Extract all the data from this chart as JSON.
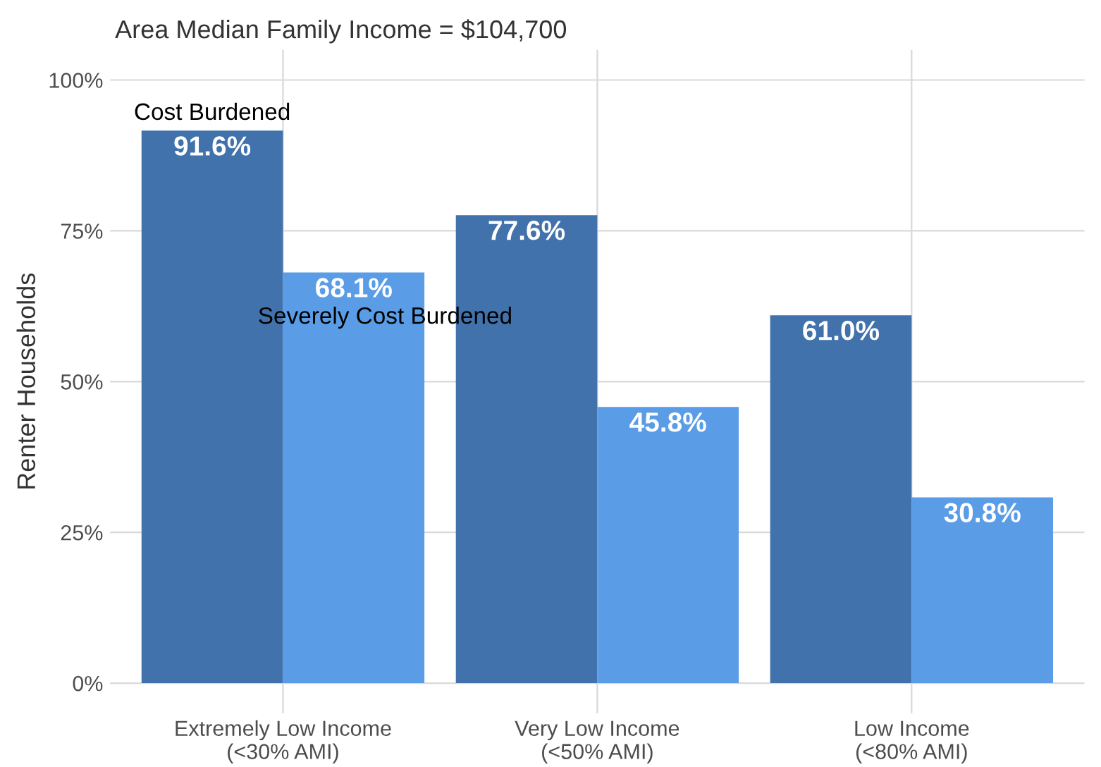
{
  "chart_data": {
    "type": "bar",
    "title": "Area Median Family Income = $104,700",
    "ylabel": "Renter Households",
    "categories": [
      "Extremely Low Income\n(<30% AMI)",
      "Very Low Income\n(<50% AMI)",
      "Low Income\n(<80% AMI)"
    ],
    "series": [
      {
        "name": "Cost Burdened",
        "color": "#4172ab",
        "values": [
          91.6,
          77.6,
          61.0
        ],
        "value_labels": [
          "91.6%",
          "77.6%",
          "61.0%"
        ]
      },
      {
        "name": "Severely Cost Burdened",
        "color": "#5a9de6",
        "values": [
          68.1,
          45.8,
          30.8
        ],
        "value_labels": [
          "68.1%",
          "45.8%",
          "30.8%"
        ]
      }
    ],
    "ylim": [
      -5,
      105
    ],
    "yticks": [
      {
        "value": 0,
        "label": "0%"
      },
      {
        "value": 25,
        "label": "25%"
      },
      {
        "value": 50,
        "label": "50%"
      },
      {
        "value": 75,
        "label": "75%"
      },
      {
        "value": 100,
        "label": "100%"
      }
    ],
    "grid": true,
    "legend": false
  }
}
